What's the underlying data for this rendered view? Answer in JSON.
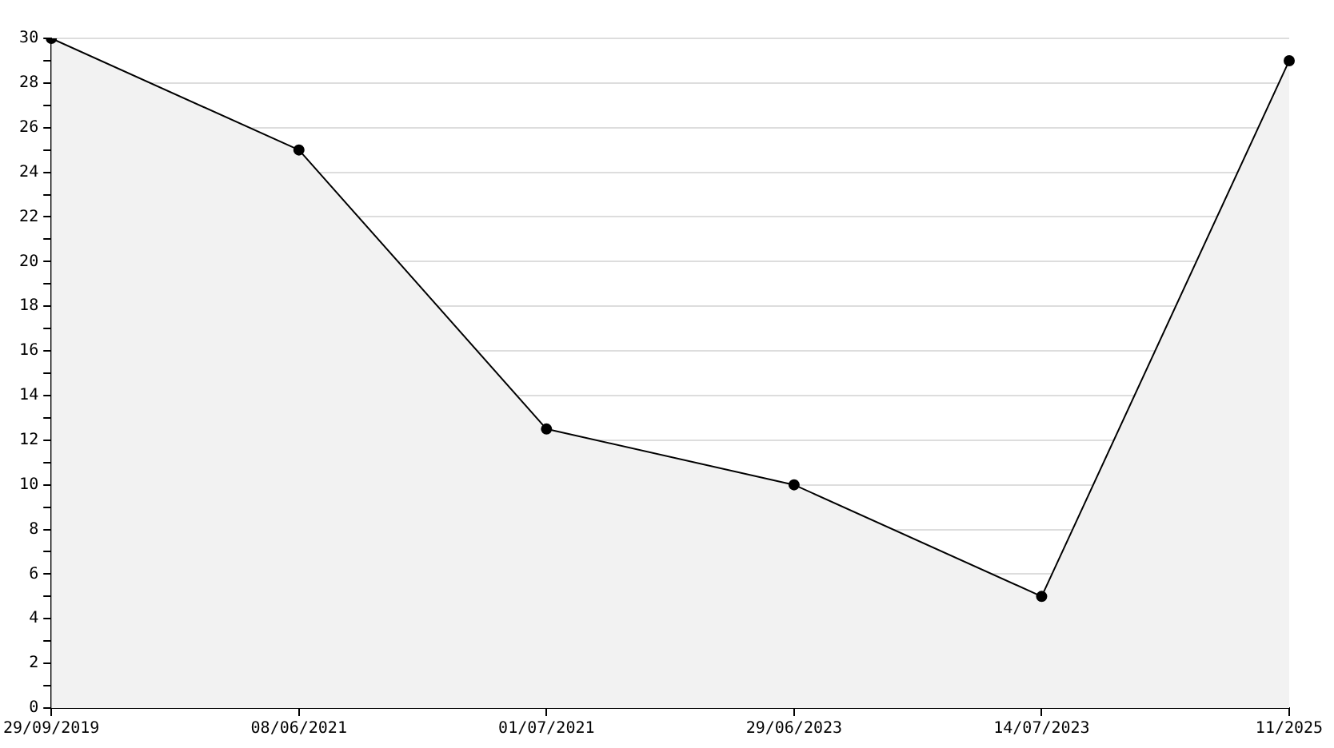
{
  "chart_data": {
    "type": "area",
    "categories": [
      "29/09/2019",
      "08/06/2021",
      "01/07/2021",
      "29/06/2023",
      "14/07/2023",
      "11/2025"
    ],
    "series": [
      {
        "color": "#000000",
        "values": [
          30,
          25,
          12.5,
          10,
          5,
          29
        ]
      }
    ],
    "ylim": [
      0,
      30
    ],
    "yticks": [
      0,
      {
        "value": 1,
        "label": null
      },
      2,
      {
        "value": 3,
        "label": null
      },
      4,
      {
        "value": 5,
        "label": null
      },
      6,
      {
        "value": 7,
        "label": null
      },
      8,
      {
        "value": 9,
        "label": null
      },
      10,
      {
        "value": 11,
        "label": null
      },
      12,
      {
        "value": 13,
        "label": null
      },
      14,
      {
        "value": 15,
        "label": null
      },
      16,
      {
        "value": 17,
        "label": null
      },
      18,
      {
        "value": 19,
        "label": null
      },
      20,
      {
        "value": 21,
        "label": null
      },
      22,
      {
        "value": 23,
        "label": null
      },
      24,
      {
        "value": 25,
        "label": null
      },
      26,
      {
        "value": 27,
        "label": null
      },
      28,
      {
        "value": 29,
        "label": null
      },
      30
    ],
    "grid": "y",
    "marker": "circle",
    "legend": false
  }
}
